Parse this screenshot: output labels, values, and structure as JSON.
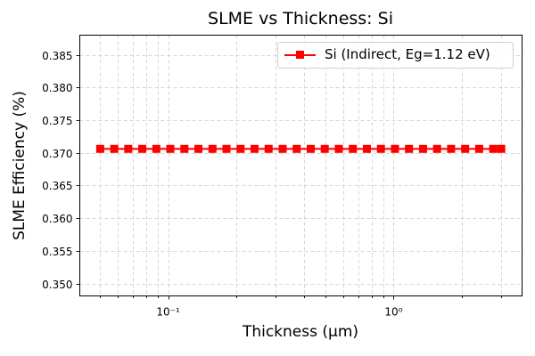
{
  "chart_data": {
    "type": "line",
    "title": "SLME vs Thickness: Si",
    "xlabel": "Thickness (µm)",
    "ylabel": "SLME Efficiency (%)",
    "xscale": "log",
    "xlim": [
      0.0406,
      3.71
    ],
    "ylim": [
      0.3481,
      0.388
    ],
    "grid": true,
    "legend_position": "upper right",
    "x_ticks": [
      {
        "value": 0.1,
        "label": "10⁻¹"
      },
      {
        "value": 1,
        "label": "10⁰"
      }
    ],
    "y_ticks": [
      0.35,
      0.355,
      0.36,
      0.365,
      0.37,
      0.375,
      0.38,
      0.385
    ],
    "y_tick_labels": [
      "0.350",
      "0.355",
      "0.360",
      "0.365",
      "0.370",
      "0.375",
      "0.380",
      "0.385"
    ],
    "series": [
      {
        "name": "Si (Indirect, Eg=1.12 eV)",
        "color": "#ff0000",
        "marker": "square",
        "x": [
          0.05,
          0.0577,
          0.0666,
          0.0768,
          0.0887,
          0.1023,
          0.1181,
          0.1363,
          0.1573,
          0.1815,
          0.2095,
          0.2417,
          0.279,
          0.322,
          0.3716,
          0.4289,
          0.495,
          0.5713,
          0.6593,
          0.7609,
          0.8782,
          1.0135,
          1.1697,
          1.35,
          1.558,
          1.7981,
          2.0752,
          2.395,
          2.7641,
          3.0
        ],
        "values": [
          0.3706,
          0.3706,
          0.3706,
          0.3706,
          0.3706,
          0.3706,
          0.3706,
          0.3706,
          0.3706,
          0.3706,
          0.3706,
          0.3706,
          0.3706,
          0.3706,
          0.3706,
          0.3706,
          0.3706,
          0.3706,
          0.3706,
          0.3706,
          0.3706,
          0.3706,
          0.3706,
          0.3706,
          0.3706,
          0.3706,
          0.3706,
          0.3706,
          0.3706,
          0.3706
        ]
      }
    ]
  }
}
